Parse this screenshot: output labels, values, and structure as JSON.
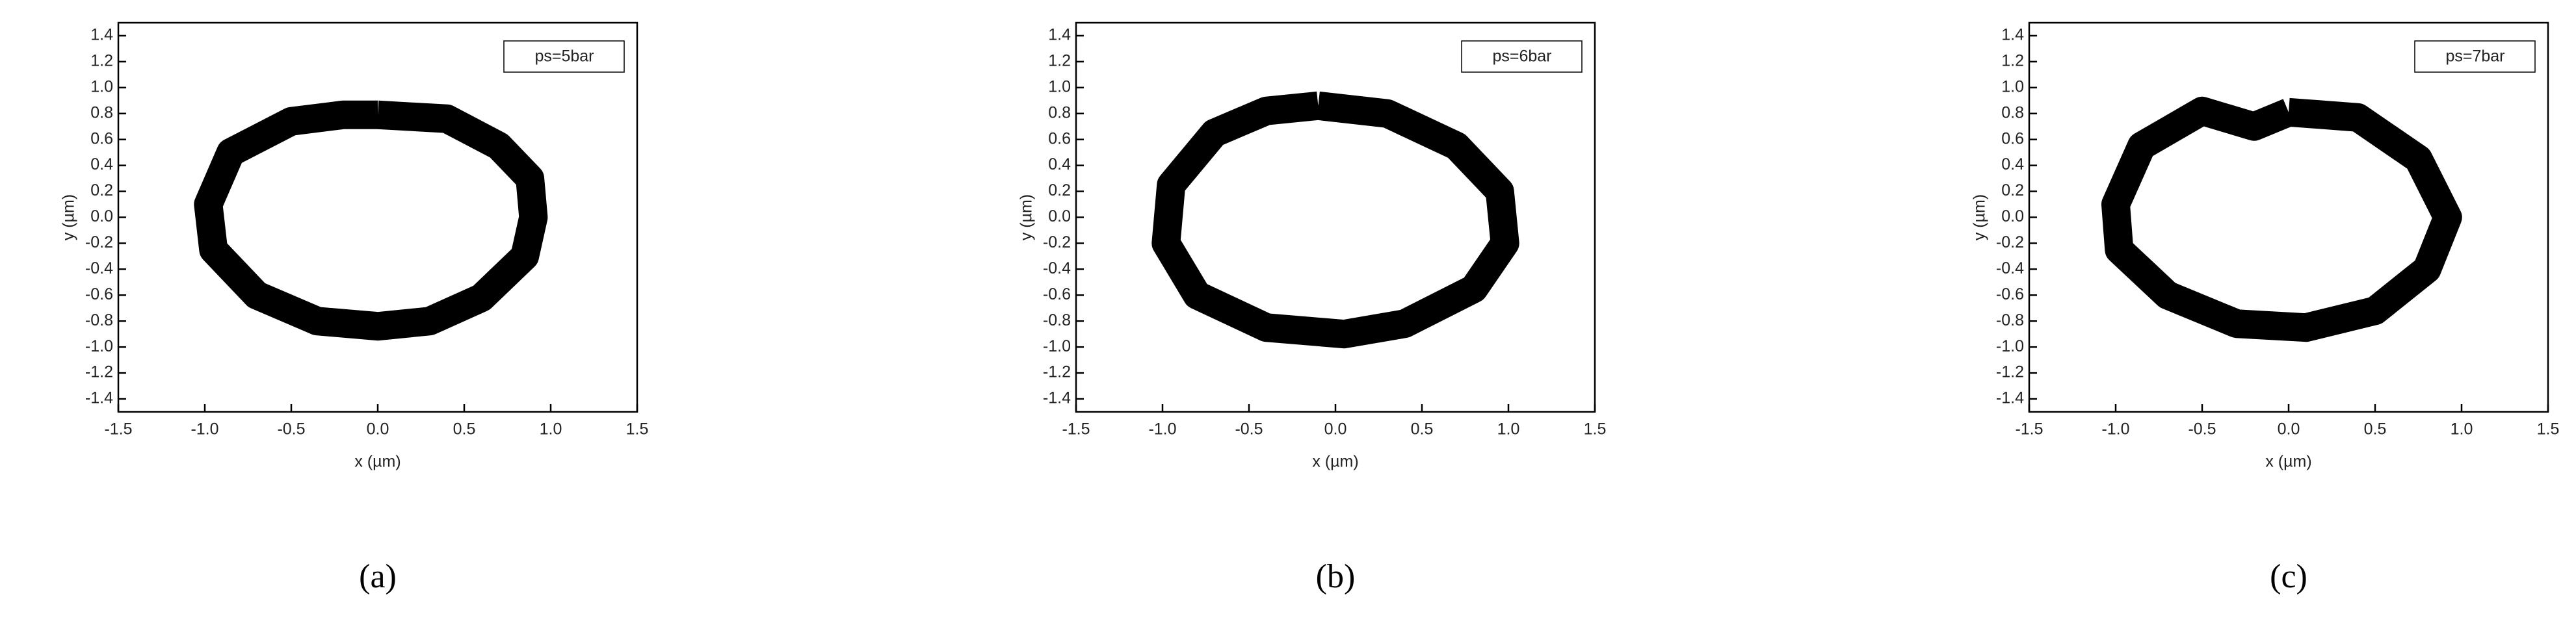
{
  "chart_data": [
    {
      "type": "line",
      "label": "(a)",
      "annotation": "ps=5bar",
      "xlabel": "x (µm)",
      "ylabel": "y (µm)",
      "color": "#000000",
      "x": [
        0.0,
        0.4,
        0.7,
        0.88,
        0.9,
        0.85,
        0.6,
        0.3,
        0.0,
        -0.35,
        -0.7,
        -0.95,
        -0.98,
        -0.85,
        -0.5,
        -0.2,
        0.0
      ],
      "y": [
        0.79,
        0.76,
        0.55,
        0.3,
        0.0,
        -0.3,
        -0.62,
        -0.8,
        -0.84,
        -0.8,
        -0.6,
        -0.25,
        0.1,
        0.5,
        0.74,
        0.79,
        0.79
      ],
      "xlim": [
        -1.5,
        1.5
      ],
      "ylim": [
        -1.5,
        1.5
      ],
      "xticks": [
        -1.5,
        {
          "value": -1.0,
          "label": "-1.0"
        },
        -0.5,
        {
          "value": 0.0,
          "label": "0.0"
        },
        0.5,
        {
          "value": 1.0,
          "label": "1.0"
        },
        1.5
      ],
      "yticks": [
        -1.4,
        -1.2,
        {
          "value": -1.0,
          "label": "-1.0"
        },
        -0.8,
        -0.6,
        -0.4,
        -0.2,
        {
          "value": 0.0,
          "label": "0.0"
        },
        0.2,
        0.4,
        0.6,
        0.8,
        {
          "value": 1.0,
          "label": "1.0"
        },
        1.2,
        1.4
      ]
    },
    {
      "type": "line",
      "label": "(b)",
      "annotation": "ps=6bar",
      "xlabel": "x (µm)",
      "ylabel": "y (µm)",
      "color": "#000000",
      "x": [
        -0.1,
        0.3,
        0.7,
        0.95,
        0.98,
        0.8,
        0.4,
        0.05,
        -0.4,
        -0.8,
        -0.98,
        -0.95,
        -0.7,
        -0.4,
        -0.1
      ],
      "y": [
        0.86,
        0.8,
        0.55,
        0.2,
        -0.2,
        -0.55,
        -0.82,
        -0.9,
        -0.85,
        -0.6,
        -0.2,
        0.25,
        0.65,
        0.82,
        0.86
      ],
      "xlim": [
        -1.5,
        1.5
      ],
      "ylim": [
        -1.5,
        1.5
      ],
      "xticks": [
        -1.5,
        {
          "value": -1.0,
          "label": "-1.0"
        },
        -0.5,
        {
          "value": 0.0,
          "label": "0.0"
        },
        0.5,
        {
          "value": 1.0,
          "label": "1.0"
        },
        1.5
      ],
      "yticks": [
        -1.4,
        -1.2,
        {
          "value": -1.0,
          "label": "-1.0"
        },
        -0.8,
        -0.6,
        -0.4,
        -0.2,
        {
          "value": 0.0,
          "label": "0.0"
        },
        0.2,
        0.4,
        0.6,
        0.8,
        {
          "value": 1.0,
          "label": "1.0"
        },
        1.2,
        1.4
      ]
    },
    {
      "type": "line",
      "label": "(c)",
      "annotation": "ps=7bar",
      "xlabel": "x (µm)",
      "ylabel": "y (µm)",
      "color": "#000000",
      "x": [
        0.0,
        0.4,
        0.75,
        0.92,
        0.8,
        0.5,
        0.1,
        -0.3,
        -0.7,
        -0.98,
        -1.0,
        -0.85,
        -0.5,
        -0.2,
        0.0
      ],
      "y": [
        0.81,
        0.77,
        0.45,
        0.0,
        -0.4,
        -0.72,
        -0.85,
        -0.82,
        -0.6,
        -0.25,
        0.1,
        0.55,
        0.82,
        0.7,
        0.81
      ],
      "xlim": [
        -1.5,
        1.5
      ],
      "ylim": [
        -1.5,
        1.5
      ],
      "xticks": [
        -1.5,
        {
          "value": -1.0,
          "label": "-1.0"
        },
        -0.5,
        {
          "value": 0.0,
          "label": "0.0"
        },
        0.5,
        {
          "value": 1.0,
          "label": "1.0"
        },
        1.5
      ],
      "yticks": [
        -1.4,
        -1.2,
        {
          "value": -1.0,
          "label": "-1.0"
        },
        -0.8,
        -0.6,
        -0.4,
        -0.2,
        {
          "value": 0.0,
          "label": "0.0"
        },
        0.2,
        0.4,
        0.6,
        0.8,
        {
          "value": 1.0,
          "label": "1.0"
        },
        1.2,
        1.4
      ]
    }
  ]
}
